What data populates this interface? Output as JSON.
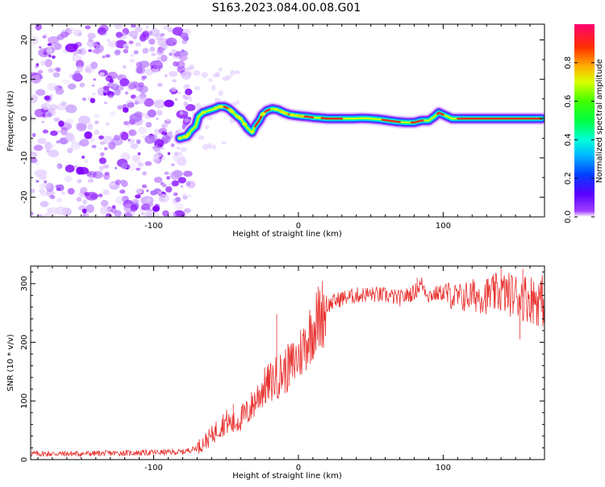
{
  "title": "S163.2023.084.00.08.G01",
  "colors": {
    "blob": "#8000ff",
    "snr_line": "#e8312e",
    "track_core": "#e8302a"
  },
  "chart_data": [
    {
      "type": "heatmap",
      "xlabel": "Height of straight line (km)",
      "ylabel": "Frequency (Hz)",
      "xlim": [
        -185,
        170
      ],
      "ylim": [
        -25,
        24
      ],
      "xticks": [
        -100,
        0,
        100
      ],
      "yticks": [
        -20,
        -10,
        0,
        10,
        20
      ],
      "colorbar": {
        "label": "Normalized spectral amplitude",
        "range": [
          0,
          1
        ],
        "ticks": [
          0.0,
          0.2,
          0.4,
          0.6,
          0.8
        ],
        "tick_labels": [
          "0.0",
          "0.2",
          "0.4",
          "0.6",
          "0.8"
        ],
        "colormap": "gist_rainbow"
      },
      "noise_region_x": [
        -185,
        -80
      ],
      "track": {
        "x": [
          -82,
          -77,
          -74,
          -71,
          -69,
          -66,
          -62,
          -58,
          -55,
          -51,
          -48,
          -45,
          -42,
          -40,
          -38,
          -35,
          -32,
          -30,
          -27,
          -25,
          -22,
          -18,
          -14,
          -10,
          -6,
          -2,
          2,
          6,
          10,
          14,
          20,
          26,
          32,
          38,
          44,
          50,
          56,
          62,
          68,
          74,
          80,
          85,
          90,
          94,
          97,
          100,
          103,
          106,
          110,
          120,
          130,
          140,
          150,
          160,
          168
        ],
        "y": [
          -5,
          -4.5,
          -3,
          -2,
          0.5,
          1.5,
          2,
          2.5,
          3,
          3,
          2.5,
          1.5,
          0.5,
          0,
          -1,
          -2.5,
          -3.5,
          -2,
          -0.5,
          1,
          2,
          2.5,
          2.2,
          1.5,
          1,
          0.8,
          0.6,
          0.5,
          0.3,
          0.2,
          0,
          0,
          0,
          0,
          0.1,
          0,
          -0.2,
          -0.5,
          -0.8,
          -1,
          -1,
          -0.5,
          -0.5,
          0.5,
          1.5,
          1,
          0.5,
          0,
          0,
          0,
          0,
          0,
          0,
          0,
          0
        ]
      }
    },
    {
      "type": "line",
      "xlabel": "Height of straight line (km)",
      "ylabel": "SNR (10 * v/v)",
      "xlim": [
        -185,
        170
      ],
      "ylim": [
        0,
        330
      ],
      "xticks": [
        -100,
        0,
        100
      ],
      "yticks": [
        0,
        100,
        200,
        300
      ],
      "series": [
        {
          "x": [
            -185,
            -150,
            -100,
            -80,
            -70,
            -60,
            -55,
            -50,
            -45,
            -40,
            -35,
            -30,
            -25,
            -20,
            -15,
            -10,
            -5,
            0,
            5,
            10,
            15,
            20,
            25,
            30,
            40,
            50,
            60,
            70,
            80,
            85,
            90,
            100,
            110,
            120,
            130,
            140,
            150,
            160,
            170
          ],
          "values": [
            10,
            10,
            12,
            13,
            20,
            40,
            55,
            65,
            60,
            70,
            80,
            100,
            120,
            130,
            140,
            150,
            160,
            175,
            200,
            225,
            245,
            262,
            270,
            275,
            280,
            282,
            280,
            275,
            285,
            300,
            280,
            285,
            275,
            280,
            280,
            285,
            280,
            275,
            270
          ],
          "spikes": [
            {
              "x": -15,
              "y": 248
            },
            {
              "x": -45,
              "y": 95
            },
            {
              "x": 82,
              "y": 310
            },
            {
              "x": 140,
              "y": 325
            },
            {
              "x": 155,
              "y": 325
            },
            {
              "x": 153,
              "y": 205
            }
          ]
        }
      ]
    }
  ]
}
